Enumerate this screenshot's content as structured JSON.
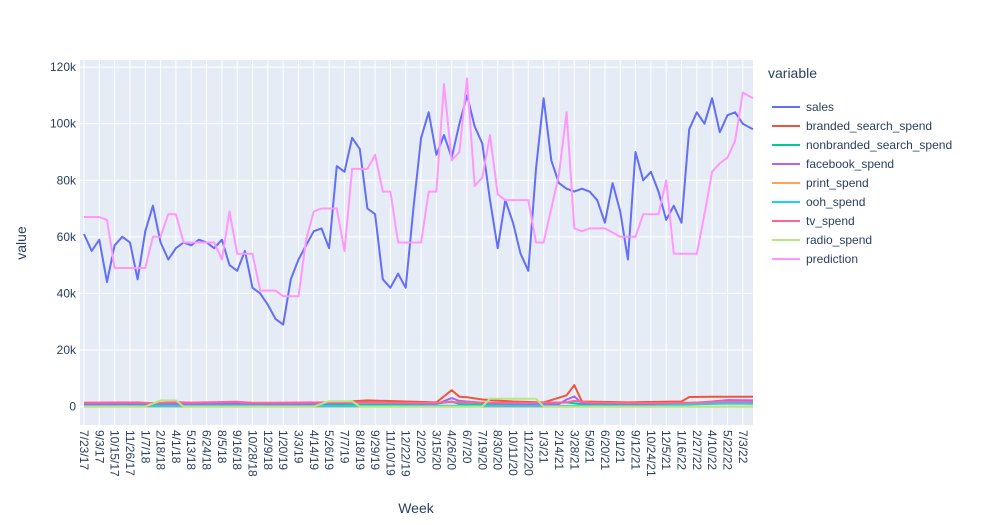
{
  "chart_data": {
    "type": "line",
    "xlabel": "Week",
    "ylabel": "value",
    "ylim": [
      -6500,
      122500
    ],
    "yticks": [
      0,
      20000,
      40000,
      60000,
      80000,
      100000,
      120000
    ],
    "ytick_labels": [
      "0",
      "20k",
      "40k",
      "60k",
      "80k",
      "100k",
      "120k"
    ],
    "legend_title": "variable",
    "legend_position": "right",
    "x_start_label": "7/23/17",
    "x_end_label": "7/31/22",
    "x_labels": [
      "7/23/17",
      "9/3/17",
      "10/15/17",
      "11/26/17",
      "1/7/18",
      "2/18/18",
      "4/1/18",
      "5/13/18",
      "6/24/18",
      "8/5/18",
      "9/16/18",
      "10/28/18",
      "12/9/18",
      "1/20/19",
      "3/3/19",
      "4/14/19",
      "5/26/19",
      "7/7/19",
      "8/18/19",
      "9/29/19",
      "11/10/19",
      "12/22/19",
      "2/2/20",
      "3/15/20",
      "4/26/20",
      "6/7/20",
      "7/19/20",
      "8/30/20",
      "10/11/20",
      "11/22/20",
      "1/3/21",
      "2/14/21",
      "3/28/21",
      "5/9/21",
      "6/20/21",
      "8/1/21",
      "9/12/21",
      "10/24/21",
      "12/5/21",
      "1/16/22",
      "2/27/22",
      "4/10/22",
      "5/22/22",
      "7/3/22"
    ],
    "series": [
      {
        "name": "sales",
        "color": "#636efa",
        "x": [
          "7/23/17",
          "8/13/17",
          "9/3/17",
          "9/24/17",
          "10/15/17",
          "11/5/17",
          "11/26/17",
          "12/17/17",
          "1/7/18",
          "1/28/18",
          "2/18/18",
          "3/11/18",
          "4/1/18",
          "4/22/18",
          "5/13/18",
          "6/3/18",
          "6/24/18",
          "7/15/18",
          "8/5/18",
          "8/26/18",
          "9/16/18",
          "10/7/18",
          "10/28/18",
          "11/18/18",
          "12/9/18",
          "12/30/18",
          "1/20/19",
          "2/10/19",
          "3/3/19",
          "3/24/19",
          "4/14/19",
          "5/5/19",
          "5/26/19",
          "6/16/19",
          "7/7/19",
          "7/28/19",
          "8/18/19",
          "9/8/19",
          "9/29/19",
          "10/20/19",
          "11/10/19",
          "12/1/19",
          "12/22/19",
          "1/12/20",
          "2/2/20",
          "2/23/20",
          "3/15/20",
          "4/5/20",
          "4/26/20",
          "5/17/20",
          "6/7/20",
          "6/28/20",
          "7/19/20",
          "8/9/20",
          "8/30/20",
          "9/20/20",
          "10/11/20",
          "11/1/20",
          "11/22/20",
          "12/13/20",
          "1/3/21",
          "1/24/21",
          "2/14/21",
          "3/7/21",
          "3/28/21",
          "4/18/21",
          "5/9/21",
          "5/30/21",
          "6/20/21",
          "7/11/21",
          "8/1/21",
          "8/22/21",
          "9/12/21",
          "10/3/21",
          "10/24/21",
          "11/14/21",
          "12/5/21",
          "12/26/21",
          "1/16/22",
          "2/6/22",
          "2/27/22",
          "3/20/22",
          "4/10/22",
          "5/1/22",
          "5/22/22",
          "6/12/22",
          "7/3/22",
          "7/31/22"
        ],
        "values": [
          61000,
          55000,
          59000,
          44000,
          57000,
          60000,
          58000,
          45000,
          62000,
          71000,
          58000,
          52000,
          56000,
          58000,
          57000,
          59000,
          58000,
          56000,
          59000,
          50000,
          48000,
          55000,
          42000,
          40000,
          36000,
          31000,
          29000,
          45000,
          52000,
          57000,
          62000,
          63000,
          56000,
          85000,
          83000,
          95000,
          91000,
          70000,
          68000,
          45000,
          42000,
          47000,
          42000,
          70000,
          95000,
          104000,
          89000,
          96000,
          88000,
          100000,
          110000,
          99000,
          93000,
          73000,
          56000,
          73000,
          65000,
          54000,
          48000,
          84000,
          109000,
          87000,
          79000,
          77000,
          76000,
          77000,
          76000,
          73000,
          65000,
          79000,
          69000,
          52000,
          90000,
          80000,
          83000,
          76000,
          66000,
          71000,
          65000,
          98000,
          104000,
          100000,
          109000,
          97000,
          103000,
          104000,
          100000,
          98000
        ]
      },
      {
        "name": "branded_search_spend",
        "color": "#ef553b",
        "x": [
          "7/23/17",
          "11/5/17",
          "3/11/18",
          "8/5/18",
          "1/20/19",
          "6/16/19",
          "9/8/19",
          "12/22/19",
          "3/15/20",
          "4/26/20",
          "5/17/20",
          "6/7/20",
          "7/19/20",
          "10/11/20",
          "1/3/21",
          "3/7/21",
          "3/28/21",
          "4/18/21",
          "8/22/21",
          "1/16/22",
          "2/6/22",
          "4/10/22",
          "7/31/22"
        ],
        "values": [
          1200,
          1300,
          1200,
          1400,
          1200,
          1500,
          2200,
          1800,
          1500,
          5800,
          3500,
          3300,
          2500,
          1800,
          1500,
          4000,
          7600,
          1800,
          1500,
          1800,
          3400,
          3500,
          3500
        ]
      },
      {
        "name": "nonbranded_search_spend",
        "color": "#00cc96",
        "x": [
          "7/23/17",
          "1/7/18",
          "8/5/18",
          "3/3/19",
          "9/29/19",
          "2/23/20",
          "4/26/20",
          "5/17/20",
          "7/19/20",
          "10/11/20",
          "3/7/21",
          "4/18/21",
          "10/24/21",
          "2/27/22",
          "5/22/22",
          "7/31/22"
        ],
        "values": [
          600,
          700,
          600,
          500,
          700,
          600,
          1800,
          900,
          800,
          600,
          1500,
          800,
          700,
          900,
          1100,
          1000
        ]
      },
      {
        "name": "facebook_spend",
        "color": "#ab63fa",
        "x": [
          "7/23/17",
          "1/7/18",
          "2/18/18",
          "4/1/18",
          "8/5/18",
          "3/3/19",
          "8/18/19",
          "12/22/19",
          "3/15/20",
          "4/26/20",
          "5/17/20",
          "6/7/20",
          "8/9/20",
          "11/1/20",
          "2/14/21",
          "3/7/21",
          "3/28/21",
          "4/18/21",
          "9/12/21",
          "12/26/21",
          "2/27/22",
          "4/10/22",
          "5/22/22",
          "7/31/22"
        ],
        "values": [
          900,
          1000,
          1200,
          900,
          1000,
          900,
          1400,
          1200,
          900,
          3000,
          2000,
          1800,
          1200,
          1000,
          900,
          2500,
          3600,
          1200,
          1000,
          900,
          1400,
          1800,
          2300,
          2200
        ]
      },
      {
        "name": "print_spend",
        "color": "#ffa15a",
        "x": [
          "7/23/17",
          "7/31/22"
        ],
        "values": [
          0,
          0
        ]
      },
      {
        "name": "ooh_spend",
        "color": "#19d3f3",
        "x": [
          "7/23/17",
          "9/16/18",
          "4/14/19",
          "8/30/20",
          "10/24/21",
          "2/27/22",
          "5/22/22",
          "7/31/22"
        ],
        "values": [
          200,
          300,
          200,
          300,
          200,
          900,
          1200,
          1100
        ]
      },
      {
        "name": "tv_spend",
        "color": "#ff6692",
        "x": [
          "7/23/17",
          "12/17/17",
          "1/28/18",
          "4/1/18",
          "5/13/18",
          "9/16/18",
          "10/28/18",
          "4/14/19",
          "8/18/19",
          "2/23/20",
          "4/26/20",
          "6/7/20",
          "8/9/20",
          "11/22/20",
          "3/7/21",
          "3/28/21",
          "5/9/21",
          "9/12/21",
          "1/16/22",
          "3/20/22",
          "5/1/22",
          "7/31/22"
        ],
        "values": [
          1400,
          1500,
          1200,
          1600,
          1400,
          1700,
          1300,
          1500,
          1400,
          1300,
          1600,
          1500,
          1400,
          1300,
          1500,
          2000,
          1400,
          1200,
          1300,
          1500,
          1800,
          1700
        ]
      },
      {
        "name": "radio_spend",
        "color": "#b6e880",
        "x": [
          "7/23/17",
          "1/7/18",
          "2/18/18",
          "4/1/18",
          "4/22/18",
          "4/14/19",
          "5/26/19",
          "7/28/19",
          "8/18/19",
          "7/19/20",
          "8/9/20",
          "12/13/20",
          "1/3/21",
          "7/31/22"
        ],
        "values": [
          0,
          0,
          2200,
          2200,
          0,
          0,
          1900,
          1900,
          0,
          0,
          2800,
          2800,
          0,
          0
        ]
      },
      {
        "name": "prediction",
        "color": "#ff97ff",
        "x": [
          "7/23/17",
          "8/13/17",
          "9/3/17",
          "9/24/17",
          "10/15/17",
          "11/5/17",
          "12/17/17",
          "1/7/18",
          "1/28/18",
          "2/18/18",
          "3/11/18",
          "4/1/18",
          "4/22/18",
          "5/13/18",
          "6/3/18",
          "6/24/18",
          "7/15/18",
          "8/5/18",
          "8/26/18",
          "9/16/18",
          "10/7/18",
          "10/28/18",
          "11/18/18",
          "12/9/18",
          "12/30/18",
          "1/20/19",
          "2/10/19",
          "3/3/19",
          "3/24/19",
          "4/14/19",
          "5/5/19",
          "5/26/19",
          "6/16/19",
          "7/7/19",
          "7/28/19",
          "8/18/19",
          "9/8/19",
          "9/29/19",
          "10/20/19",
          "11/10/19",
          "12/1/19",
          "12/22/19",
          "1/12/20",
          "2/2/20",
          "2/23/20",
          "3/15/20",
          "4/5/20",
          "4/26/20",
          "5/17/20",
          "6/7/20",
          "6/28/20",
          "7/19/20",
          "8/9/20",
          "8/30/20",
          "9/20/20",
          "10/11/20",
          "11/1/20",
          "11/22/20",
          "12/13/20",
          "1/3/21",
          "1/24/21",
          "2/14/21",
          "3/7/21",
          "3/28/21",
          "4/18/21",
          "5/9/21",
          "6/20/21",
          "8/1/21",
          "9/12/21",
          "10/3/21",
          "10/24/21",
          "11/14/21",
          "12/5/21",
          "12/26/21",
          "1/16/22",
          "2/6/22",
          "2/27/22",
          "3/20/22",
          "4/10/22",
          "5/1/22",
          "5/22/22",
          "6/12/22",
          "7/3/22",
          "7/31/22"
        ],
        "values": [
          67000,
          67000,
          67000,
          66000,
          49000,
          49000,
          49000,
          49000,
          60000,
          60000,
          68000,
          68000,
          58000,
          58000,
          58000,
          58000,
          58000,
          52000,
          69000,
          54000,
          54000,
          54000,
          41000,
          41000,
          41000,
          39000,
          39000,
          39000,
          59000,
          69000,
          70000,
          70000,
          70000,
          55000,
          84000,
          84000,
          84000,
          89000,
          76000,
          76000,
          58000,
          58000,
          58000,
          58000,
          76000,
          76000,
          114000,
          87000,
          90000,
          116000,
          78000,
          81000,
          96000,
          75000,
          73000,
          73000,
          73000,
          73000,
          58000,
          58000,
          70000,
          82000,
          104000,
          63000,
          62000,
          63000,
          63000,
          60000,
          60000,
          68000,
          68000,
          68000,
          80000,
          54000,
          54000,
          54000,
          54000,
          68000,
          83000,
          86000,
          88000,
          94000,
          111000,
          109000
        ]
      }
    ]
  }
}
